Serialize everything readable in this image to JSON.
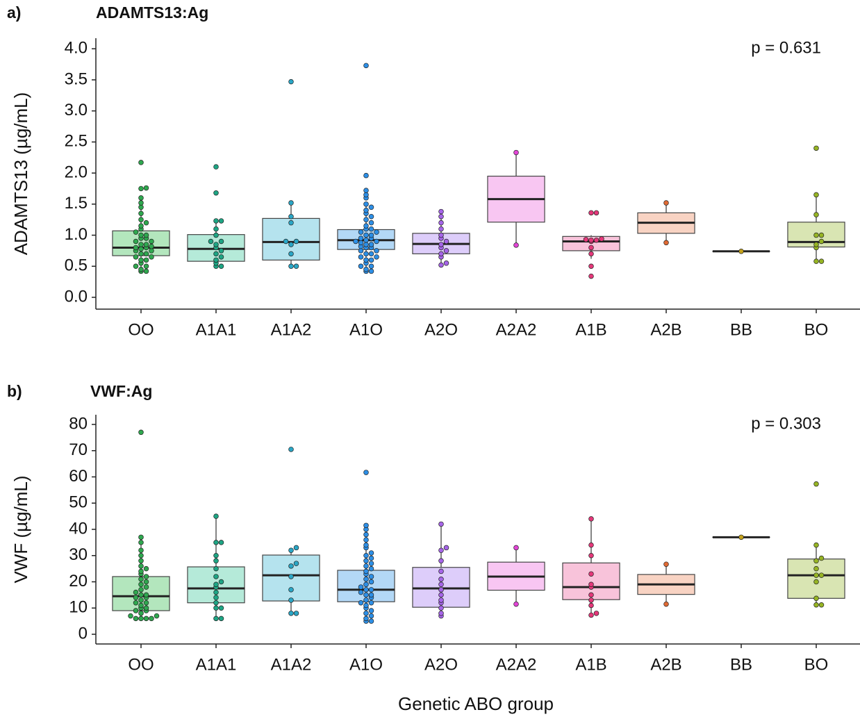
{
  "chart_data": [
    {
      "type": "box",
      "panel_label": "a)",
      "title": "ADAMTS13:Ag",
      "ylabel": "ADAMTS13 (µg/mL)",
      "annotation": "p = 0.631",
      "categories": [
        "OO",
        "A1A1",
        "A1A2",
        "A1O",
        "A2O",
        "A2A2",
        "A1B",
        "A2B",
        "BB",
        "BO"
      ],
      "colors": [
        "#b3e6bd",
        "#b5ead9",
        "#b5e3ee",
        "#b3d8f6",
        "#ddcdfa",
        "#f8c6f2",
        "#f8c3da",
        "#f8d3c3",
        "#efe6b8",
        "#d9e5b3"
      ],
      "dot_colors": [
        "#2fa84f",
        "#1ea584",
        "#2aa6c6",
        "#2d8fe6",
        "#a665e8",
        "#e244d6",
        "#e4387a",
        "#e06a34",
        "#c4a21c",
        "#96b424"
      ],
      "stats": [
        [
          0.42,
          0.67,
          0.8,
          1.07,
          1.47
        ],
        [
          0.5,
          0.58,
          0.78,
          1.01,
          1.23
        ],
        [
          0.5,
          0.6,
          0.89,
          1.27,
          1.52
        ],
        [
          0.42,
          0.77,
          0.92,
          1.09,
          1.5
        ],
        [
          0.52,
          0.7,
          0.86,
          1.03,
          1.38
        ],
        [
          0.84,
          1.21,
          1.58,
          1.95,
          2.33
        ],
        [
          0.62,
          0.75,
          0.9,
          0.98,
          1.0
        ],
        [
          0.88,
          1.03,
          1.2,
          1.36,
          1.52
        ],
        [
          0.74,
          0.74,
          0.74,
          0.74,
          0.74
        ],
        [
          0.58,
          0.81,
          0.89,
          1.21,
          1.65
        ]
      ],
      "points": [
        [
          0.42,
          0.42,
          0.45,
          0.5,
          0.5,
          0.55,
          0.6,
          0.6,
          0.65,
          0.65,
          0.7,
          0.7,
          0.75,
          0.75,
          0.78,
          0.8,
          0.8,
          0.82,
          0.85,
          0.85,
          0.9,
          0.9,
          0.95,
          0.95,
          1.0,
          1.0,
          1.05,
          1.1,
          1.15,
          1.2,
          1.25,
          1.35,
          1.45,
          1.52,
          1.6,
          1.75,
          1.76,
          2.17
        ],
        [
          0.5,
          0.5,
          0.55,
          0.6,
          0.65,
          0.7,
          0.75,
          0.8,
          0.85,
          0.9,
          0.9,
          1.0,
          1.1,
          1.23,
          1.23,
          1.68,
          2.1
        ],
        [
          0.5,
          0.5,
          0.7,
          0.85,
          0.9,
          0.9,
          1.2,
          1.3,
          1.52,
          3.47
        ],
        [
          0.42,
          0.42,
          0.45,
          0.5,
          0.5,
          0.55,
          0.6,
          0.6,
          0.65,
          0.65,
          0.7,
          0.7,
          0.75,
          0.75,
          0.8,
          0.8,
          0.82,
          0.85,
          0.85,
          0.88,
          0.9,
          0.9,
          0.92,
          0.95,
          0.95,
          1.0,
          1.0,
          1.05,
          1.05,
          1.1,
          1.1,
          1.15,
          1.2,
          1.25,
          1.3,
          1.35,
          1.4,
          1.45,
          1.5,
          1.6,
          1.65,
          1.72,
          1.96,
          3.73
        ],
        [
          0.52,
          0.55,
          0.65,
          0.7,
          0.75,
          0.8,
          0.85,
          0.9,
          0.95,
          1.0,
          1.1,
          1.2,
          1.3,
          1.38
        ],
        [
          0.84,
          2.33
        ],
        [
          0.34,
          0.5,
          0.7,
          0.8,
          0.9,
          0.92,
          0.92,
          0.93,
          0.94,
          1.36,
          1.36
        ],
        [
          0.88,
          1.52
        ],
        [
          0.74
        ],
        [
          0.58,
          0.58,
          0.8,
          0.85,
          0.9,
          1.0,
          1.0,
          1.33,
          1.65,
          2.4
        ]
      ],
      "ylim": [
        -0.19,
        4.17
      ],
      "yticks": [
        {
          "value": 0,
          "label": "0.0"
        },
        {
          "value": 0.5,
          "label": "0.5"
        },
        {
          "value": 1,
          "label": "1.0"
        },
        {
          "value": 1.5,
          "label": "1.5"
        },
        {
          "value": 2,
          "label": "2.0"
        },
        {
          "value": 2.5,
          "label": "2.5"
        },
        {
          "value": 3,
          "label": "3.0"
        },
        {
          "value": 3.5,
          "label": "3.5"
        },
        {
          "value": 4,
          "label": "4.0"
        }
      ]
    },
    {
      "type": "box",
      "panel_label": "b)",
      "title": "VWF:Ag",
      "ylabel": "VWF (µg/mL)",
      "annotation": "p = 0.303",
      "xlabel": "Genetic ABO group",
      "categories": [
        "OO",
        "A1A1",
        "A1A2",
        "A1O",
        "A2O",
        "A2A2",
        "A1B",
        "A2B",
        "BB",
        "BO"
      ],
      "colors": [
        "#b3e6bd",
        "#b5ead9",
        "#b5e3ee",
        "#b3d8f6",
        "#ddcdfa",
        "#f8c6f2",
        "#f8c3da",
        "#f8d3c3",
        "#efe6b8",
        "#d9e5b3"
      ],
      "dot_colors": [
        "#2fa84f",
        "#1ea584",
        "#2aa6c6",
        "#2d8fe6",
        "#a665e8",
        "#e244d6",
        "#e4387a",
        "#e06a34",
        "#c4a21c",
        "#96b424"
      ],
      "stats": [
        [
          6,
          9,
          14.5,
          22,
          37
        ],
        [
          6,
          12,
          17.5,
          25.7,
          45
        ],
        [
          8,
          12.7,
          22.5,
          30.2,
          33
        ],
        [
          5,
          12.4,
          17,
          24.4,
          41.5
        ],
        [
          7,
          10.3,
          17.5,
          25.5,
          42
        ],
        [
          11.5,
          16.8,
          22,
          27.5,
          33
        ],
        [
          7.3,
          13.2,
          18,
          27.2,
          44
        ],
        [
          11.5,
          15.2,
          19,
          22.8,
          26.7
        ],
        [
          37,
          37,
          37,
          37,
          37
        ],
        [
          11.2,
          13.7,
          22.5,
          28.7,
          34
        ]
      ],
      "points": [
        [
          6,
          6,
          6,
          6,
          7,
          7,
          8,
          9,
          9,
          10,
          10,
          11,
          12,
          12,
          13,
          14,
          14,
          15,
          15,
          16,
          17,
          18,
          19,
          20,
          21,
          22,
          23,
          24,
          25,
          26,
          28,
          30,
          32,
          35,
          37,
          77
        ],
        [
          6,
          6,
          10,
          10,
          12,
          14,
          16,
          18,
          19,
          20,
          22,
          25,
          28,
          30,
          35,
          35,
          45
        ],
        [
          8,
          8,
          13,
          17,
          22,
          26,
          27,
          32,
          33,
          70.5
        ],
        [
          5,
          5,
          6,
          7,
          8,
          9,
          10,
          11,
          12,
          12,
          13,
          14,
          15,
          15,
          16,
          17,
          17,
          18,
          19,
          20,
          21,
          22,
          23,
          24,
          25,
          26,
          27,
          28,
          29,
          30,
          31,
          33,
          34,
          36,
          38,
          40,
          41.5,
          61.7
        ],
        [
          7,
          8,
          10,
          12,
          13,
          15,
          17,
          19,
          21,
          24,
          28,
          32,
          33,
          42
        ],
        [
          11.5,
          33
        ],
        [
          7.3,
          8,
          11,
          13,
          15,
          18,
          19,
          23,
          30,
          34,
          44
        ],
        [
          11.5,
          26.7
        ],
        [
          37
        ],
        [
          11.2,
          11.2,
          13.7,
          20,
          22.5,
          22.5,
          25,
          28,
          29,
          34,
          57.3
        ]
      ],
      "ylim": [
        -3.7,
        83.7
      ],
      "yticks": [
        0,
        10,
        20,
        30,
        40,
        50,
        60,
        70,
        80
      ]
    }
  ]
}
